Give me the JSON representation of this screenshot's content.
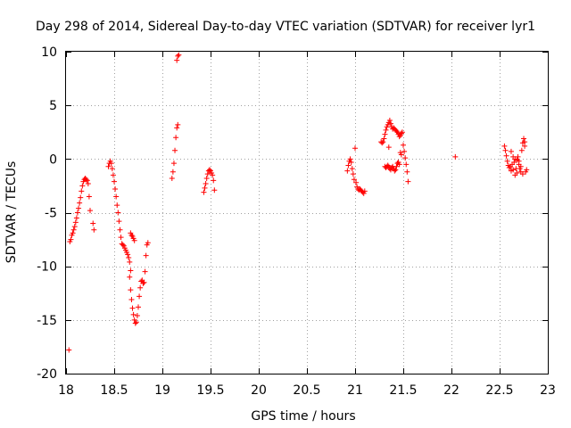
{
  "chart_data": {
    "type": "scatter",
    "title": "Day 298 of 2014, Sidereal Day-to-day VTEC variation (SDTVAR) for receiver lyr1",
    "xlabel": "GPS time / hours",
    "ylabel": "SDTVAR / TECUs",
    "xlim": [
      18,
      23
    ],
    "ylim": [
      -20,
      10
    ],
    "xticks": [
      18,
      18.5,
      19,
      19.5,
      20,
      20.5,
      21,
      21.5,
      22,
      22.5,
      23
    ],
    "xtick_labels": [
      "18",
      "18.5",
      "19",
      "19.5",
      "20",
      "20.5",
      "21",
      "21.5",
      "22",
      "22.5",
      "23"
    ],
    "yticks": [
      -20,
      -15,
      -10,
      -5,
      0,
      5,
      10
    ],
    "ytick_labels": [
      "-20",
      "-15",
      "-10",
      "-5",
      "0",
      "5",
      "10"
    ],
    "grid": true,
    "marker": "+",
    "series": [
      {
        "name": "lyr1",
        "color": "#ff0000",
        "points": [
          [
            18.03,
            -17.8
          ],
          [
            18.04,
            -7.7
          ],
          [
            18.05,
            -7.5
          ],
          [
            18.06,
            -7.1
          ],
          [
            18.07,
            -6.9
          ],
          [
            18.08,
            -6.6
          ],
          [
            18.09,
            -6.3
          ],
          [
            18.1,
            -5.9
          ],
          [
            18.11,
            -5.5
          ],
          [
            18.12,
            -5.0
          ],
          [
            18.13,
            -4.6
          ],
          [
            18.14,
            -4.1
          ],
          [
            18.15,
            -3.6
          ],
          [
            18.16,
            -3.0
          ],
          [
            18.17,
            -2.5
          ],
          [
            18.18,
            -2.1
          ],
          [
            18.19,
            -1.9
          ],
          [
            18.2,
            -1.8
          ],
          [
            18.21,
            -1.9
          ],
          [
            18.22,
            -2.0
          ],
          [
            18.23,
            -2.3
          ],
          [
            18.24,
            -3.5
          ],
          [
            18.25,
            -4.8
          ],
          [
            18.28,
            -6.0
          ],
          [
            18.29,
            -6.6
          ],
          [
            18.44,
            -0.7
          ],
          [
            18.45,
            -0.4
          ],
          [
            18.46,
            -0.2
          ],
          [
            18.47,
            -0.4
          ],
          [
            18.48,
            -0.9
          ],
          [
            18.49,
            -1.5
          ],
          [
            18.5,
            -2.1
          ],
          [
            18.51,
            -2.8
          ],
          [
            18.52,
            -3.5
          ],
          [
            18.53,
            -4.3
          ],
          [
            18.54,
            -5.0
          ],
          [
            18.55,
            -5.8
          ],
          [
            18.56,
            -6.6
          ],
          [
            18.57,
            -7.3
          ],
          [
            18.58,
            -7.9
          ],
          [
            18.59,
            -8.0
          ],
          [
            18.6,
            -8.1
          ],
          [
            18.61,
            -8.3
          ],
          [
            18.62,
            -8.5
          ],
          [
            18.63,
            -8.7
          ],
          [
            18.64,
            -8.9
          ],
          [
            18.65,
            -9.2
          ],
          [
            18.66,
            -9.6
          ],
          [
            18.67,
            -10.4
          ],
          [
            18.66,
            -11.0
          ],
          [
            18.67,
            -12.2
          ],
          [
            18.68,
            -13.1
          ],
          [
            18.69,
            -13.9
          ],
          [
            18.7,
            -14.5
          ],
          [
            18.71,
            -15.0
          ],
          [
            18.72,
            -15.3
          ],
          [
            18.73,
            -15.2
          ],
          [
            18.74,
            -14.6
          ],
          [
            18.75,
            -13.8
          ],
          [
            18.76,
            -12.8
          ],
          [
            18.77,
            -12.0
          ],
          [
            18.78,
            -11.4
          ],
          [
            18.79,
            -11.3
          ],
          [
            18.8,
            -11.6
          ],
          [
            18.81,
            -11.5
          ],
          [
            18.82,
            -10.5
          ],
          [
            18.83,
            -9.0
          ],
          [
            18.84,
            -8.0
          ],
          [
            18.85,
            -7.8
          ],
          [
            18.67,
            -6.9
          ],
          [
            18.68,
            -7.1
          ],
          [
            18.69,
            -7.2
          ],
          [
            18.7,
            -7.4
          ],
          [
            18.71,
            -7.6
          ],
          [
            19.1,
            -1.8
          ],
          [
            19.11,
            -1.2
          ],
          [
            19.12,
            -0.4
          ],
          [
            19.13,
            0.8
          ],
          [
            19.14,
            2.0
          ],
          [
            19.15,
            2.9
          ],
          [
            19.16,
            3.2
          ],
          [
            19.15,
            9.2
          ],
          [
            19.16,
            9.6
          ],
          [
            19.17,
            9.7
          ],
          [
            19.43,
            -3.1
          ],
          [
            19.44,
            -2.7
          ],
          [
            19.45,
            -2.3
          ],
          [
            19.46,
            -1.8
          ],
          [
            19.47,
            -1.4
          ],
          [
            19.48,
            -1.1
          ],
          [
            19.49,
            -1.0
          ],
          [
            19.5,
            -1.1
          ],
          [
            19.51,
            -1.3
          ],
          [
            19.52,
            -1.5
          ],
          [
            19.53,
            -2.0
          ],
          [
            19.54,
            -2.9
          ],
          [
            20.92,
            -1.1
          ],
          [
            20.93,
            -0.6
          ],
          [
            20.94,
            -0.2
          ],
          [
            20.95,
            0.0
          ],
          [
            20.96,
            -0.3
          ],
          [
            20.97,
            -0.9
          ],
          [
            20.98,
            -1.4
          ],
          [
            20.99,
            -1.9
          ],
          [
            21.0,
            1.0
          ],
          [
            21.01,
            -2.2
          ],
          [
            21.02,
            -2.6
          ],
          [
            21.03,
            -2.8
          ],
          [
            21.04,
            -2.9
          ],
          [
            21.05,
            -2.8
          ],
          [
            21.06,
            -2.9
          ],
          [
            21.07,
            -3.0
          ],
          [
            21.08,
            -3.1
          ],
          [
            21.09,
            -3.2
          ],
          [
            21.1,
            -3.0
          ],
          [
            21.27,
            1.6
          ],
          [
            21.28,
            1.5
          ],
          [
            21.29,
            1.6
          ],
          [
            21.3,
            1.9
          ],
          [
            21.31,
            2.3
          ],
          [
            21.32,
            2.7
          ],
          [
            21.33,
            3.0
          ],
          [
            21.34,
            3.2
          ],
          [
            21.35,
            3.4
          ],
          [
            21.36,
            3.6
          ],
          [
            21.37,
            3.3
          ],
          [
            21.38,
            3.0
          ],
          [
            21.39,
            2.8
          ],
          [
            21.4,
            2.9
          ],
          [
            21.41,
            2.8
          ],
          [
            21.42,
            2.7
          ],
          [
            21.43,
            2.6
          ],
          [
            21.44,
            2.5
          ],
          [
            21.45,
            2.3
          ],
          [
            21.46,
            2.1
          ],
          [
            21.47,
            2.2
          ],
          [
            21.48,
            2.4
          ],
          [
            21.49,
            2.5
          ],
          [
            21.5,
            1.3
          ],
          [
            21.51,
            0.7
          ],
          [
            21.52,
            0.1
          ],
          [
            21.53,
            -0.5
          ],
          [
            21.54,
            -1.2
          ],
          [
            21.55,
            -2.1
          ],
          [
            21.31,
            -0.7
          ],
          [
            21.32,
            -0.8
          ],
          [
            21.33,
            -0.7
          ],
          [
            21.34,
            -0.6
          ],
          [
            21.35,
            -0.7
          ],
          [
            21.36,
            -0.9
          ],
          [
            21.37,
            -1.0
          ],
          [
            21.38,
            -0.8
          ],
          [
            21.39,
            -0.7
          ],
          [
            21.4,
            -0.9
          ],
          [
            21.41,
            -1.1
          ],
          [
            21.42,
            -1.0
          ],
          [
            21.43,
            -0.7
          ],
          [
            21.44,
            -0.4
          ],
          [
            21.45,
            -0.3
          ],
          [
            21.46,
            -0.5
          ],
          [
            21.47,
            0.6
          ],
          [
            21.48,
            0.4
          ],
          [
            21.35,
            1.1
          ],
          [
            22.04,
            0.2
          ],
          [
            22.55,
            1.2
          ],
          [
            22.56,
            0.8
          ],
          [
            22.57,
            0.3
          ],
          [
            22.58,
            -0.2
          ],
          [
            22.59,
            -0.6
          ],
          [
            22.6,
            -0.8
          ],
          [
            22.61,
            -0.7
          ],
          [
            22.62,
            -1.1
          ],
          [
            22.63,
            -0.5
          ],
          [
            22.64,
            0.2
          ],
          [
            22.65,
            -0.3
          ],
          [
            22.66,
            -1.5
          ],
          [
            22.67,
            -0.9
          ],
          [
            22.68,
            -0.1
          ],
          [
            22.69,
            0.2
          ],
          [
            22.7,
            -0.5
          ],
          [
            22.71,
            -0.9
          ],
          [
            22.72,
            -1.2
          ],
          [
            22.73,
            0.8
          ],
          [
            22.74,
            1.5
          ],
          [
            22.75,
            1.9
          ],
          [
            22.76,
            1.6
          ],
          [
            22.77,
            -1.2
          ],
          [
            22.78,
            -1.0
          ],
          [
            22.62,
            0.7
          ],
          [
            22.64,
            -1.0
          ],
          [
            22.66,
            0.0
          ],
          [
            22.68,
            -1.3
          ],
          [
            22.7,
            -0.2
          ],
          [
            22.72,
            -0.7
          ],
          [
            22.74,
            -1.4
          ],
          [
            22.76,
            1.2
          ]
        ]
      }
    ]
  }
}
